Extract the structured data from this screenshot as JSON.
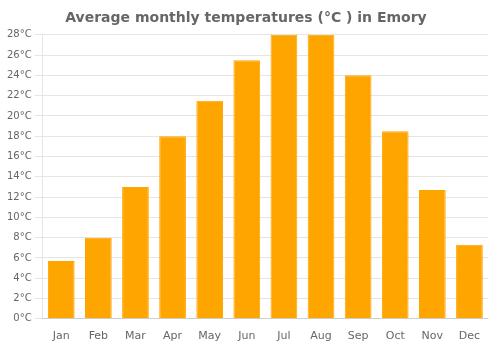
{
  "chart_data": {
    "type": "bar",
    "title": "Average monthly temperatures (°C ) in Emory",
    "categories": [
      "Jan",
      "Feb",
      "Mar",
      "Apr",
      "May",
      "Jun",
      "Jul",
      "Aug",
      "Sep",
      "Oct",
      "Nov",
      "Dec"
    ],
    "values": [
      5.7,
      8.0,
      13.0,
      18.0,
      21.5,
      25.5,
      28.0,
      28.0,
      24.0,
      18.5,
      12.7,
      7.3
    ],
    "color": "#FFA500",
    "ylim": [
      0,
      28
    ],
    "yticks": [
      {
        "value": 0,
        "label": "0°C"
      },
      {
        "value": 2,
        "label": "2°C"
      },
      {
        "value": 4,
        "label": "4°C"
      },
      {
        "value": 6,
        "label": "6°C"
      },
      {
        "value": 8,
        "label": "8°C"
      },
      {
        "value": 10,
        "label": "10°C"
      },
      {
        "value": 12,
        "label": "12°C"
      },
      {
        "value": 14,
        "label": "14°C"
      },
      {
        "value": 16,
        "label": "16°C"
      },
      {
        "value": 18,
        "label": "18°C"
      },
      {
        "value": 20,
        "label": "20°C"
      },
      {
        "value": 22,
        "label": "22°C"
      },
      {
        "value": 24,
        "label": "24°C"
      },
      {
        "value": 26,
        "label": "26°C"
      },
      {
        "value": 28,
        "label": "28°C"
      }
    ],
    "grid": true
  }
}
